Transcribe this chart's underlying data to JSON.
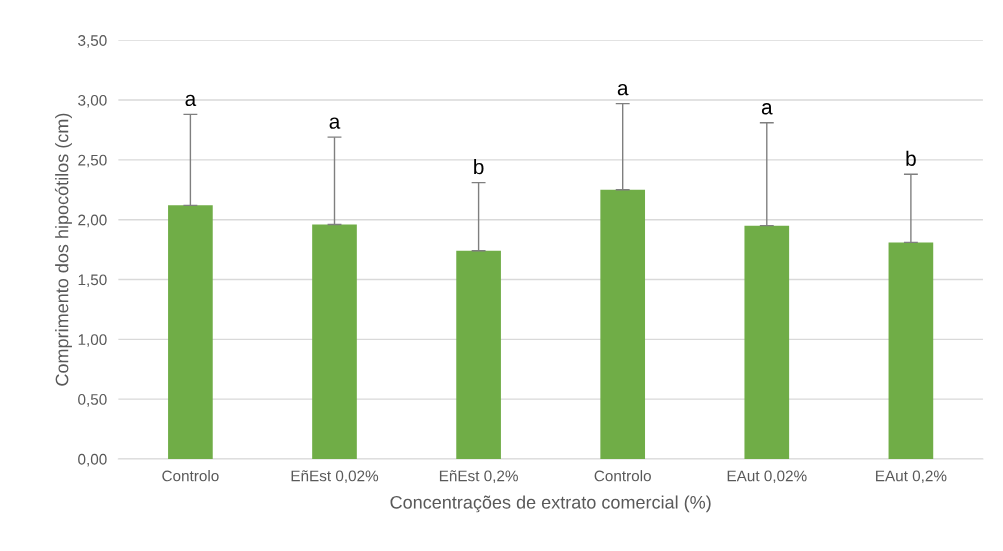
{
  "chart_data": {
    "type": "bar",
    "xlabel": "Concentrações de extrato comercial (%)",
    "ylabel": "Comprimento dos hipocótilos (cm)",
    "categories": [
      "Controlo",
      "EñEst 0,02%",
      "EñEst 0,2%",
      "Controlo",
      "EAut 0,02%",
      "EAut 0,2%"
    ],
    "values": [
      2.12,
      1.96,
      1.74,
      2.25,
      1.95,
      1.81
    ],
    "errors": [
      [
        2.12,
        2.88
      ],
      [
        1.96,
        2.69
      ],
      [
        1.74,
        2.31
      ],
      [
        2.25,
        2.97
      ],
      [
        1.95,
        2.81
      ],
      [
        1.81,
        2.38
      ]
    ],
    "color": "#70ad47",
    "ylim": [
      0,
      3.5
    ],
    "yticks": [
      {
        "value": 0,
        "label": "0,00"
      },
      {
        "value": 0.5,
        "label": "0,50"
      },
      {
        "value": 1,
        "label": "1,00"
      },
      {
        "value": 1.5,
        "label": "1,50"
      },
      {
        "value": 2,
        "label": "2,00"
      },
      {
        "value": 2.5,
        "label": "2,50"
      },
      {
        "value": 3,
        "label": "3,00"
      },
      {
        "value": 3.5,
        "label": "3,50"
      }
    ],
    "grid": "y",
    "legend": false,
    "annotations": [
      "a",
      "a",
      "b",
      "a",
      "a",
      "b"
    ]
  }
}
